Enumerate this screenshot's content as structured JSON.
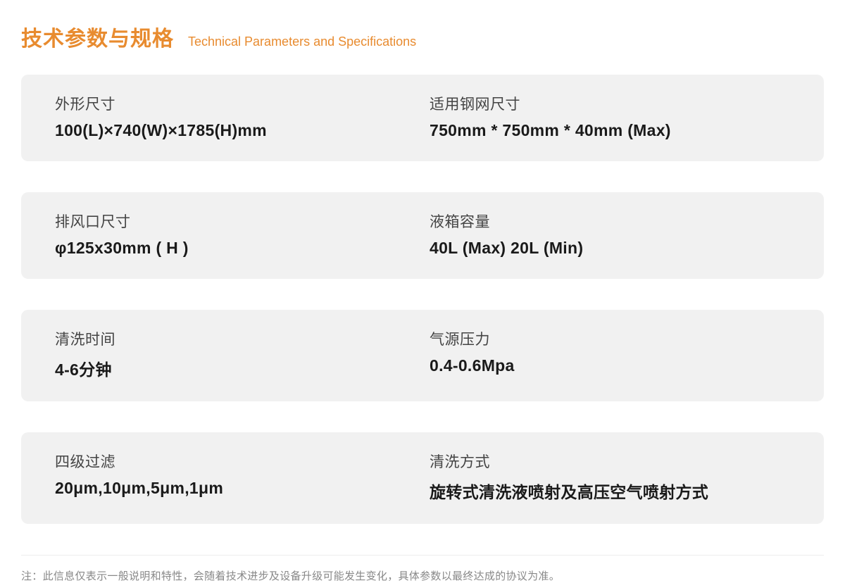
{
  "header": {
    "title_cn": "技术参数与规格",
    "title_en": "Technical Parameters and Specifications"
  },
  "colors": {
    "accent": "#e88b2f",
    "row_bg": "#f1f1f1",
    "label_text": "#444444",
    "value_text": "#1a1a1a",
    "footnote_text": "#888888",
    "divider": "#eeeeee",
    "page_bg": "#ffffff"
  },
  "specs": {
    "rows": [
      {
        "left": {
          "label": "外形尺寸",
          "value": "100(L)×740(W)×1785(H)mm"
        },
        "right": {
          "label": "适用钢网尺寸",
          "value": "750mm * 750mm * 40mm (Max)"
        }
      },
      {
        "left": {
          "label": "排风口尺寸",
          "value": "φ125x30mm ( H )"
        },
        "right": {
          "label": "液箱容量",
          "value": "40L (Max) 20L (Min)"
        }
      },
      {
        "left": {
          "label": "清洗时间",
          "value": "4-6分钟"
        },
        "right": {
          "label": "气源压力",
          "value": "0.4-0.6Mpa"
        }
      },
      {
        "left": {
          "label": "四级过滤",
          "value": "20μm,10μm,5μm,1μm"
        },
        "right": {
          "label": "清洗方式",
          "value": "旋转式清洗液喷射及高压空气喷射方式"
        }
      }
    ]
  },
  "footnote": "注：此信息仅表示一般说明和特性，会随着技术进步及设备升级可能发生变化，具体参数以最终达成的协议为准。"
}
